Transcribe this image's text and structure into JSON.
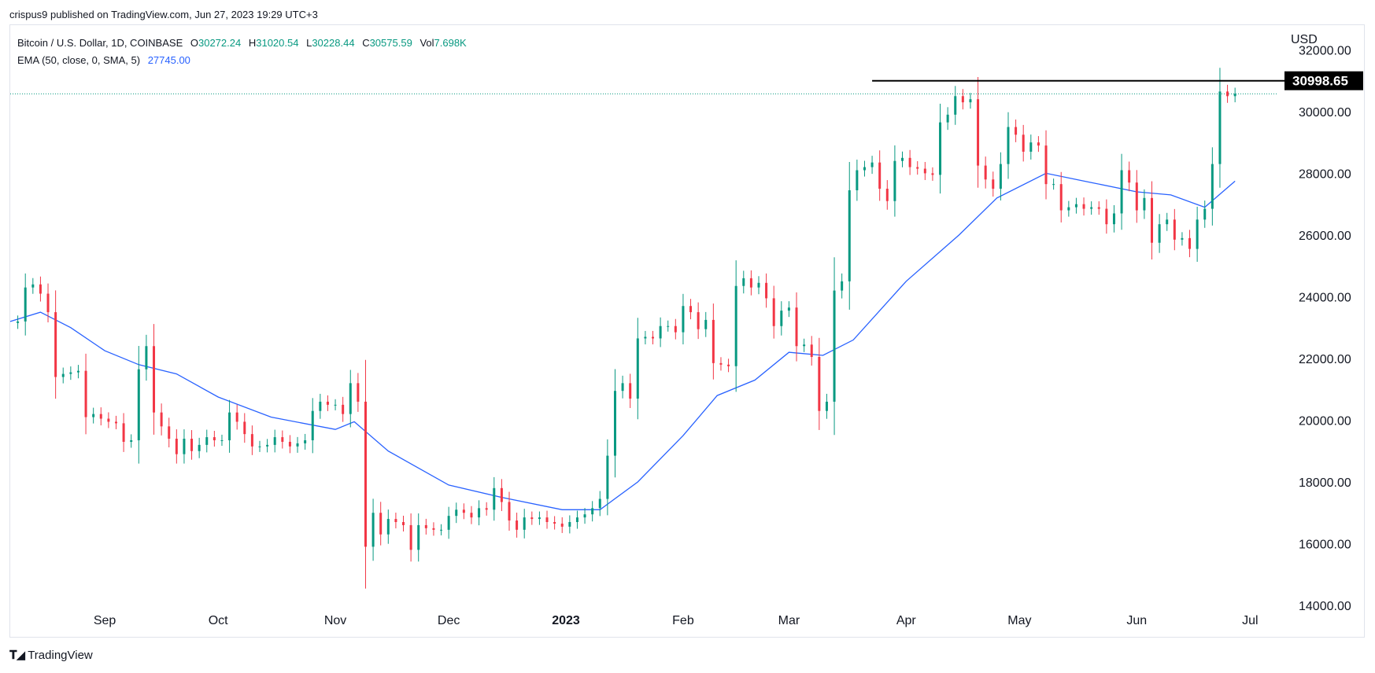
{
  "publisher": "crispus9 published on TradingView.com, Jun 27, 2023 19:29 UTC+3",
  "brand": {
    "logo_icon": "tradingview-logo-icon",
    "name": "TradingView"
  },
  "legend": {
    "symbol": "Bitcoin / U.S. Dollar, 1D, COINBASE",
    "open_label": "O",
    "open": "30272.24",
    "high_label": "H",
    "high": "31020.54",
    "low_label": "L",
    "low": "30228.44",
    "close_label": "C",
    "close": "30575.59",
    "vol_label": "Vol",
    "vol": "7.698K",
    "ema_label": "EMA (50, close, 0, SMA, 5)",
    "ema_value": "27745.00"
  },
  "currency": "USD",
  "colors": {
    "up": "#089981",
    "down": "#f23645",
    "ema": "#2962ff",
    "grid_dots": "#089981",
    "resistance": "#000000"
  },
  "chart_data": {
    "type": "candlestick",
    "y_ticks": [
      "14000.00",
      "16000.00",
      "18000.00",
      "20000.00",
      "22000.00",
      "24000.00",
      "26000.00",
      "28000.00",
      "30000.00",
      "32000.00"
    ],
    "ylim": [
      14000,
      32800
    ],
    "x_tick_labels": [
      "Sep",
      "Oct",
      "Nov",
      "Dec",
      "2023",
      "Feb",
      "Mar",
      "Apr",
      "May",
      "Jun",
      "Jul"
    ],
    "x_tick_dates": [
      "2022-09-01",
      "2022-10-01",
      "2022-11-01",
      "2022-12-01",
      "2023-01-01",
      "2023-02-01",
      "2023-03-01",
      "2023-04-01",
      "2023-05-01",
      "2023-06-01",
      "2023-07-01"
    ],
    "date_range": [
      "2022-08-07",
      "2023-07-08"
    ],
    "resistance_level": 30998.65,
    "resistance_label": "30998.65",
    "resistance_from": "2023-03-23",
    "last_price": 30575.59,
    "closes": [
      [
        "2022-08-07",
        23150
      ],
      [
        "2022-08-09",
        23200
      ],
      [
        "2022-08-11",
        24300
      ],
      [
        "2022-08-13",
        24400
      ],
      [
        "2022-08-15",
        24100
      ],
      [
        "2022-08-17",
        23500
      ],
      [
        "2022-08-19",
        21400
      ],
      [
        "2022-08-21",
        21500
      ],
      [
        "2022-08-23",
        21550
      ],
      [
        "2022-08-25",
        21600
      ],
      [
        "2022-08-27",
        20100
      ],
      [
        "2022-08-29",
        20200
      ],
      [
        "2022-08-31",
        20050
      ],
      [
        "2022-09-02",
        19950
      ],
      [
        "2022-09-04",
        19900
      ],
      [
        "2022-09-06",
        19300
      ],
      [
        "2022-09-08",
        19350
      ],
      [
        "2022-09-10",
        21650
      ],
      [
        "2022-09-12",
        22400
      ],
      [
        "2022-09-14",
        20250
      ],
      [
        "2022-09-16",
        19800
      ],
      [
        "2022-09-18",
        19400
      ],
      [
        "2022-09-20",
        18900
      ],
      [
        "2022-09-22",
        19400
      ],
      [
        "2022-09-24",
        19000
      ],
      [
        "2022-09-26",
        19200
      ],
      [
        "2022-09-28",
        19450
      ],
      [
        "2022-09-30",
        19350
      ],
      [
        "2022-10-02",
        19350
      ],
      [
        "2022-10-04",
        20250
      ],
      [
        "2022-10-06",
        19950
      ],
      [
        "2022-10-08",
        19550
      ],
      [
        "2022-10-10",
        19150
      ],
      [
        "2022-10-12",
        19150
      ],
      [
        "2022-10-14",
        19200
      ],
      [
        "2022-10-16",
        19450
      ],
      [
        "2022-10-18",
        19300
      ],
      [
        "2022-10-20",
        19150
      ],
      [
        "2022-10-22",
        19250
      ],
      [
        "2022-10-24",
        19350
      ],
      [
        "2022-10-26",
        20300
      ],
      [
        "2022-10-28",
        20600
      ],
      [
        "2022-10-30",
        20500
      ],
      [
        "2022-11-01",
        20500
      ],
      [
        "2022-11-03",
        20200
      ],
      [
        "2022-11-05",
        21200
      ],
      [
        "2022-11-07",
        20600
      ],
      [
        "2022-11-09",
        15900
      ],
      [
        "2022-11-11",
        17000
      ],
      [
        "2022-11-13",
        16300
      ],
      [
        "2022-11-15",
        16800
      ],
      [
        "2022-11-17",
        16700
      ],
      [
        "2022-11-19",
        16600
      ],
      [
        "2022-11-21",
        15800
      ],
      [
        "2022-11-23",
        16600
      ],
      [
        "2022-11-25",
        16500
      ],
      [
        "2022-11-27",
        16450
      ],
      [
        "2022-11-29",
        16450
      ],
      [
        "2022-12-01",
        16900
      ],
      [
        "2022-12-03",
        17100
      ],
      [
        "2022-12-05",
        17000
      ],
      [
        "2022-12-07",
        16850
      ],
      [
        "2022-12-09",
        17150
      ],
      [
        "2022-12-11",
        17100
      ],
      [
        "2022-12-13",
        17800
      ],
      [
        "2022-12-15",
        17350
      ],
      [
        "2022-12-17",
        16750
      ],
      [
        "2022-12-19",
        16450
      ],
      [
        "2022-12-21",
        16850
      ],
      [
        "2022-12-23",
        16800
      ],
      [
        "2022-12-25",
        16850
      ],
      [
        "2022-12-27",
        16700
      ],
      [
        "2022-12-29",
        16650
      ],
      [
        "2022-12-31",
        16550
      ],
      [
        "2023-01-02",
        16700
      ],
      [
        "2023-01-04",
        16850
      ],
      [
        "2023-01-06",
        16950
      ],
      [
        "2023-01-08",
        17150
      ],
      [
        "2023-01-10",
        17450
      ],
      [
        "2023-01-12",
        18850
      ],
      [
        "2023-01-14",
        20950
      ],
      [
        "2023-01-16",
        21200
      ],
      [
        "2023-01-18",
        20700
      ],
      [
        "2023-01-20",
        22650
      ],
      [
        "2023-01-22",
        22700
      ],
      [
        "2023-01-24",
        22650
      ],
      [
        "2023-01-26",
        23050
      ],
      [
        "2023-01-28",
        23050
      ],
      [
        "2023-01-30",
        22850
      ],
      [
        "2023-02-01",
        23700
      ],
      [
        "2023-02-03",
        23500
      ],
      [
        "2023-02-05",
        22950
      ],
      [
        "2023-02-07",
        23250
      ],
      [
        "2023-02-09",
        21850
      ],
      [
        "2023-02-11",
        21800
      ],
      [
        "2023-02-13",
        21750
      ],
      [
        "2023-02-15",
        24350
      ],
      [
        "2023-02-17",
        24600
      ],
      [
        "2023-02-19",
        24300
      ],
      [
        "2023-02-21",
        24450
      ],
      [
        "2023-02-23",
        23950
      ],
      [
        "2023-02-25",
        23050
      ],
      [
        "2023-02-27",
        23550
      ],
      [
        "2023-03-01",
        23650
      ],
      [
        "2023-03-03",
        22400
      ],
      [
        "2023-03-05",
        22450
      ],
      [
        "2023-03-07",
        22050
      ],
      [
        "2023-03-09",
        20300
      ],
      [
        "2023-03-11",
        20600
      ],
      [
        "2023-03-13",
        24200
      ],
      [
        "2023-03-15",
        24500
      ],
      [
        "2023-03-17",
        27450
      ],
      [
        "2023-03-19",
        28100
      ],
      [
        "2023-03-21",
        28200
      ],
      [
        "2023-03-23",
        28350
      ],
      [
        "2023-03-25",
        27500
      ],
      [
        "2023-03-27",
        27100
      ],
      [
        "2023-03-29",
        28400
      ],
      [
        "2023-03-31",
        28500
      ],
      [
        "2023-04-02",
        28200
      ],
      [
        "2023-04-04",
        28150
      ],
      [
        "2023-04-06",
        28000
      ],
      [
        "2023-04-08",
        27950
      ],
      [
        "2023-04-10",
        29650
      ],
      [
        "2023-04-12",
        29900
      ],
      [
        "2023-04-14",
        30500
      ],
      [
        "2023-04-16",
        30300
      ],
      [
        "2023-04-18",
        30400
      ],
      [
        "2023-04-20",
        28250
      ],
      [
        "2023-04-22",
        27800
      ],
      [
        "2023-04-24",
        27500
      ],
      [
        "2023-04-26",
        28300
      ],
      [
        "2023-04-28",
        29500
      ],
      [
        "2023-04-30",
        29250
      ],
      [
        "2023-05-02",
        28700
      ],
      [
        "2023-05-04",
        29000
      ],
      [
        "2023-05-06",
        28900
      ],
      [
        "2023-05-08",
        27650
      ],
      [
        "2023-05-10",
        27650
      ],
      [
        "2023-05-12",
        26800
      ],
      [
        "2023-05-14",
        26900
      ],
      [
        "2023-05-16",
        27000
      ],
      [
        "2023-05-18",
        26850
      ],
      [
        "2023-05-20",
        26900
      ],
      [
        "2023-05-22",
        26850
      ],
      [
        "2023-05-24",
        26350
      ],
      [
        "2023-05-26",
        26700
      ],
      [
        "2023-05-28",
        28100
      ],
      [
        "2023-05-30",
        27700
      ],
      [
        "2023-06-01",
        26800
      ],
      [
        "2023-06-03",
        27200
      ],
      [
        "2023-06-05",
        25750
      ],
      [
        "2023-06-07",
        26350
      ],
      [
        "2023-06-09",
        26500
      ],
      [
        "2023-06-11",
        25850
      ],
      [
        "2023-06-13",
        25900
      ],
      [
        "2023-06-15",
        25550
      ],
      [
        "2023-06-17",
        26500
      ],
      [
        "2023-06-19",
        26850
      ],
      [
        "2023-06-21",
        28300
      ],
      [
        "2023-06-23",
        30650
      ],
      [
        "2023-06-25",
        30500
      ],
      [
        "2023-06-27",
        30575
      ]
    ],
    "ema50": [
      [
        "2022-08-07",
        23200
      ],
      [
        "2022-08-15",
        23500
      ],
      [
        "2022-08-23",
        23000
      ],
      [
        "2022-09-01",
        22250
      ],
      [
        "2022-09-10",
        21800
      ],
      [
        "2022-09-20",
        21500
      ],
      [
        "2022-10-01",
        20750
      ],
      [
        "2022-10-15",
        20100
      ],
      [
        "2022-11-01",
        19700
      ],
      [
        "2022-11-06",
        19950
      ],
      [
        "2022-11-15",
        19000
      ],
      [
        "2022-12-01",
        17900
      ],
      [
        "2022-12-15",
        17500
      ],
      [
        "2022-12-31",
        17100
      ],
      [
        "2023-01-10",
        17100
      ],
      [
        "2023-01-20",
        18000
      ],
      [
        "2023-02-01",
        19500
      ],
      [
        "2023-02-10",
        20800
      ],
      [
        "2023-02-20",
        21300
      ],
      [
        "2023-03-01",
        22200
      ],
      [
        "2023-03-10",
        22100
      ],
      [
        "2023-03-18",
        22600
      ],
      [
        "2023-04-01",
        24500
      ],
      [
        "2023-04-15",
        26000
      ],
      [
        "2023-04-25",
        27200
      ],
      [
        "2023-05-08",
        28000
      ],
      [
        "2023-05-20",
        27700
      ],
      [
        "2023-06-01",
        27400
      ],
      [
        "2023-06-10",
        27300
      ],
      [
        "2023-06-19",
        26900
      ],
      [
        "2023-06-27",
        27745
      ]
    ]
  }
}
